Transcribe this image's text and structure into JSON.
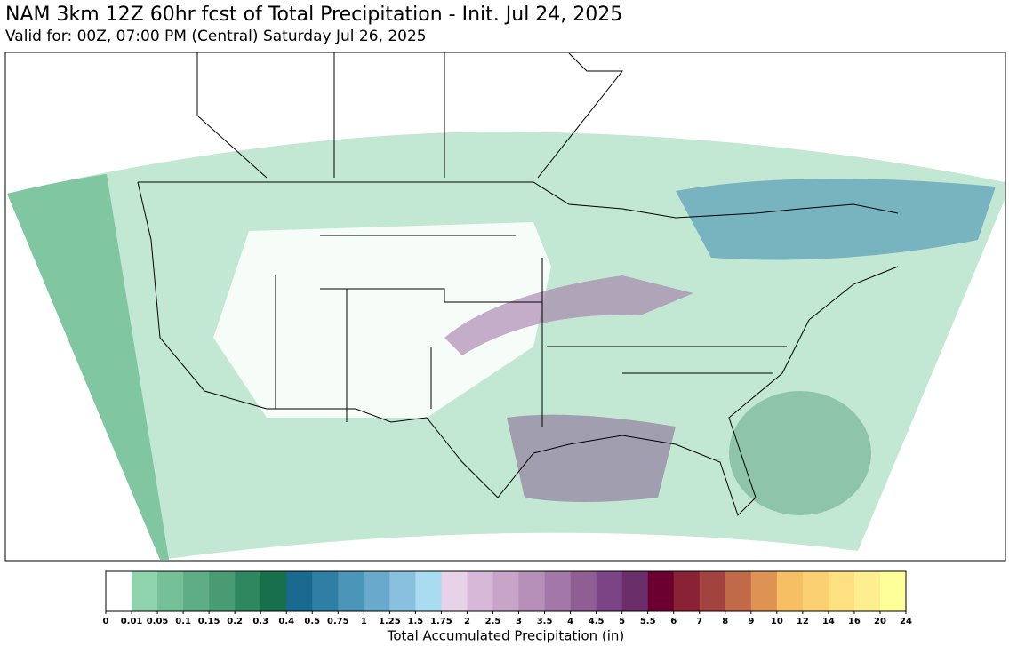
{
  "header": {
    "title": "NAM 3km 12Z 60hr fcst of Total Precipitation - Init. Jul 24, 2025",
    "subtitle": "Valid for: 00Z, 07:00 PM (Central) Saturday Jul 26, 2025"
  },
  "colorbar": {
    "label": "Total Accumulated Precipitation (in)",
    "ticks": [
      0,
      0.01,
      0.05,
      0.1,
      0.15,
      0.2,
      0.3,
      0.4,
      0.5,
      0.75,
      1,
      1.25,
      1.5,
      1.75,
      2,
      2.5,
      3,
      3.5,
      4,
      4.5,
      5,
      5.5,
      6,
      7,
      8,
      9,
      10,
      12,
      14,
      16,
      20,
      24
    ],
    "colors": [
      "#ffffff",
      "#8fd3ad",
      "#76c098",
      "#5fad86",
      "#489b72",
      "#2f8760",
      "#17704b",
      "#1a6a8f",
      "#2f7fa4",
      "#4a95b8",
      "#69aacc",
      "#88c0dd",
      "#a9dcf0",
      "#e8d2ea",
      "#d8b8d8",
      "#c8a4c8",
      "#b58fb8",
      "#a378a8",
      "#8f5e94",
      "#7b4585",
      "#6a2e6a",
      "#6b0030",
      "#8a2235",
      "#a34340",
      "#c06a4a",
      "#de9253",
      "#f6bf63",
      "#fad072",
      "#fde080",
      "#ffee90",
      "#ffff99"
    ]
  }
}
